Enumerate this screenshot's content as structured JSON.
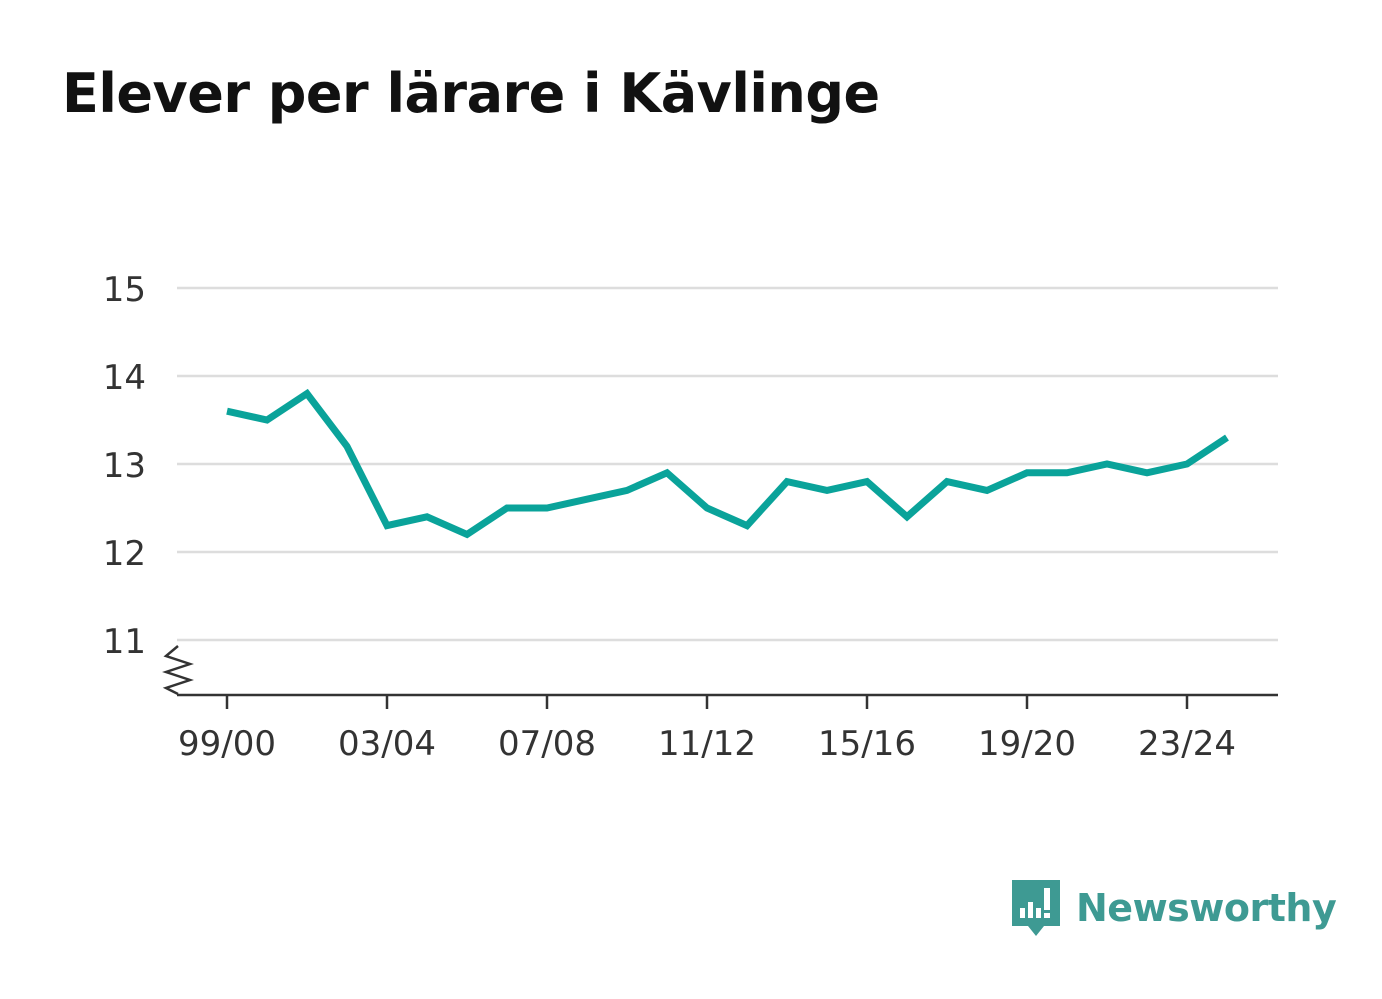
{
  "title": "Elever per lärare i Kävlinge",
  "colors": {
    "line": "#0aa39a",
    "grid": "#dddddd",
    "axis": "#333333",
    "text": "#333333",
    "brand": "#3e9a93"
  },
  "brand": {
    "name": "Newsworthy",
    "icon": "newsworthy-logo-icon"
  },
  "chart_data": {
    "type": "line",
    "title": "Elever per lärare i Kävlinge",
    "xlabel": "",
    "ylabel": "",
    "ylim": [
      10.4,
      15
    ],
    "yticks": [
      11,
      12,
      13,
      14,
      15
    ],
    "grid": true,
    "y_axis_break": true,
    "xticks": [
      "99/00",
      "03/04",
      "07/08",
      "11/12",
      "15/16",
      "19/20",
      "23/24"
    ],
    "x": [
      "99/00",
      "00/01",
      "01/02",
      "02/03",
      "03/04",
      "04/05",
      "05/06",
      "06/07",
      "07/08",
      "08/09",
      "09/10",
      "10/11",
      "11/12",
      "12/13",
      "13/14",
      "14/15",
      "15/16",
      "16/17",
      "17/18",
      "18/19",
      "19/20",
      "20/21",
      "21/22",
      "22/23",
      "23/24",
      "24/25"
    ],
    "series": [
      {
        "values": [
          13.6,
          13.5,
          13.8,
          13.2,
          12.3,
          12.4,
          12.2,
          12.5,
          12.5,
          12.6,
          12.7,
          12.9,
          12.5,
          12.3,
          12.8,
          12.7,
          12.8,
          12.4,
          12.8,
          12.7,
          12.9,
          12.9,
          13.0,
          12.9,
          13.0,
          13.3
        ]
      }
    ]
  }
}
